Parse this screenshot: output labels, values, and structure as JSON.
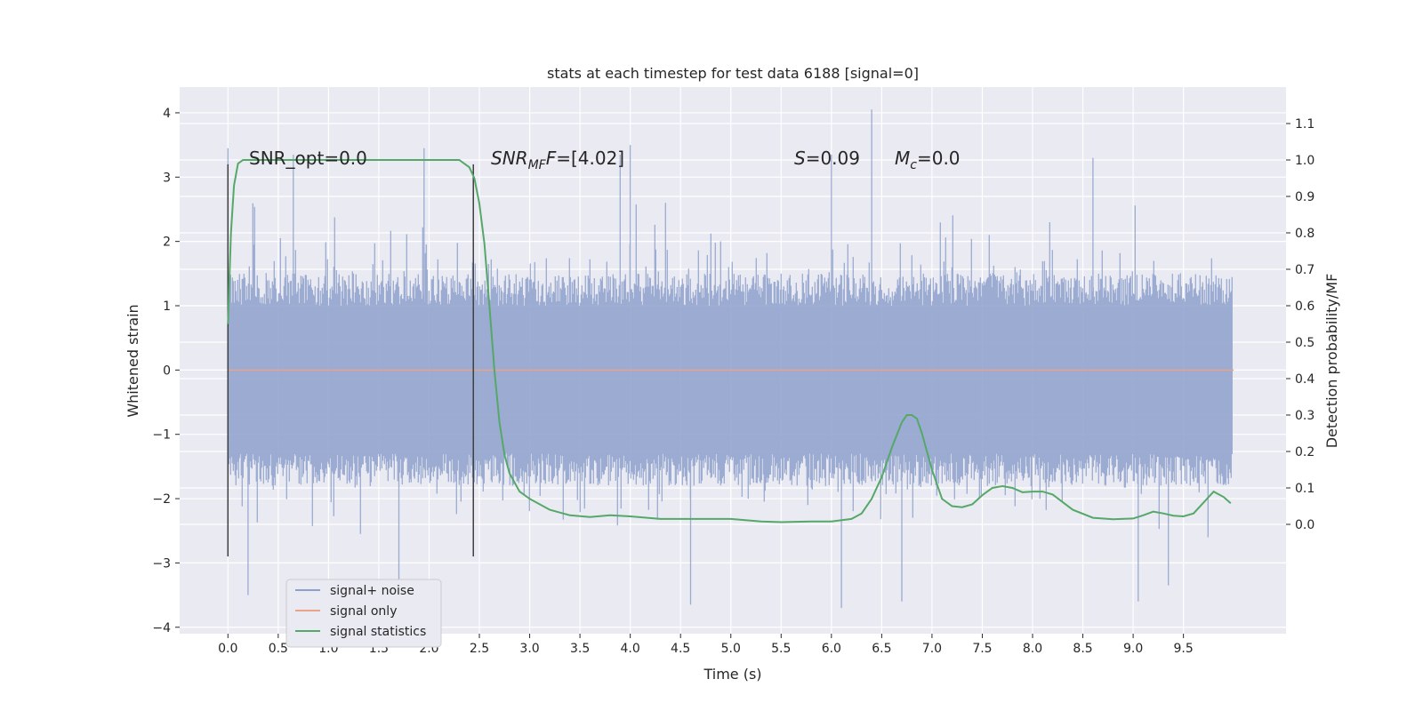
{
  "chart_data": {
    "type": "line",
    "title": "stats at each timestep for test data 6188 [signal=0]",
    "xlabel": "Time (s)",
    "ylabel": "Whitened strain",
    "y2label": "Detection probability/MF",
    "xlim": [
      -0.48,
      10.52
    ],
    "ylim": [
      -4.1,
      4.4
    ],
    "y2lim": [
      -0.3,
      1.2
    ],
    "xticks": [
      "0.0",
      "0.5",
      "1.0",
      "1.5",
      "2.0",
      "2.5",
      "3.0",
      "3.5",
      "4.0",
      "4.5",
      "5.0",
      "5.5",
      "6.0",
      "6.5",
      "7.0",
      "7.5",
      "8.0",
      "8.5",
      "9.0",
      "9.5"
    ],
    "yticks": [
      "4",
      "3",
      "2",
      "1",
      "0",
      "−1",
      "−2",
      "−3",
      "−4"
    ],
    "y2ticks": [
      "1.1",
      "1.0",
      "0.9",
      "0.8",
      "0.7",
      "0.6",
      "0.5",
      "0.4",
      "0.3",
      "0.2",
      "0.1",
      "0.0"
    ],
    "grid": true,
    "legend": {
      "placement": "lower-left",
      "entries": [
        "signal+ noise",
        "signal only",
        "signal statistics"
      ]
    },
    "colors": {
      "background": "#eaeaf2",
      "grid": "#ffffff",
      "noise": "#8da0cb",
      "signal": "#e9a389",
      "stats": "#55a868",
      "vline": "#404040"
    },
    "annotations": {
      "snr_opt": "SNR_opt=0.0",
      "snr_mf_prefix": "SNR",
      "snr_mf_sub": "MF",
      "snr_mf_suffix": "=[4.02]",
      "s_label": "S",
      "s_value": "=0.09",
      "mc_label": "M",
      "mc_sub": "c",
      "mc_value": "=0.0"
    },
    "vlines": [
      0.0,
      2.44
    ],
    "series": [
      {
        "name": "signal+ noise",
        "axis": "left",
        "x_range": [
          0.0,
          9.99
        ],
        "envelope_max": 4.05,
        "envelope_min": -3.7,
        "peaks": [
          [
            0.0,
            3.45
          ],
          [
            0.65,
            3.35
          ],
          [
            1.95,
            3.45
          ],
          [
            3.9,
            3.35
          ],
          [
            4.0,
            3.5
          ],
          [
            6.0,
            3.35
          ],
          [
            6.4,
            4.05
          ],
          [
            8.6,
            3.3
          ],
          [
            0.2,
            -3.5
          ],
          [
            1.7,
            -3.35
          ],
          [
            4.6,
            -3.65
          ],
          [
            6.1,
            -3.7
          ],
          [
            6.7,
            -3.6
          ],
          [
            9.05,
            -3.6
          ],
          [
            9.35,
            -3.35
          ]
        ]
      },
      {
        "name": "signal only",
        "axis": "left",
        "x": [
          0.0,
          10.0
        ],
        "y": [
          0.0,
          0.0
        ]
      },
      {
        "name": "signal statistics",
        "axis": "right",
        "x": [
          0.0,
          0.03,
          0.06,
          0.1,
          0.15,
          0.2,
          0.3,
          0.5,
          1.0,
          1.5,
          2.0,
          2.2,
          2.3,
          2.35,
          2.4,
          2.45,
          2.5,
          2.55,
          2.6,
          2.65,
          2.7,
          2.75,
          2.8,
          2.9,
          3.0,
          3.2,
          3.4,
          3.6,
          3.8,
          4.0,
          4.3,
          4.6,
          5.0,
          5.3,
          5.5,
          5.8,
          6.0,
          6.2,
          6.3,
          6.4,
          6.5,
          6.6,
          6.7,
          6.75,
          6.8,
          6.85,
          6.9,
          7.0,
          7.1,
          7.2,
          7.3,
          7.4,
          7.5,
          7.6,
          7.7,
          7.8,
          7.9,
          8.0,
          8.1,
          8.2,
          8.4,
          8.6,
          8.8,
          9.0,
          9.1,
          9.2,
          9.3,
          9.4,
          9.5,
          9.6,
          9.7,
          9.8,
          9.9,
          9.97
        ],
        "y": [
          0.55,
          0.8,
          0.93,
          0.99,
          1.0,
          1.0,
          1.0,
          1.0,
          1.0,
          1.0,
          1.0,
          1.0,
          1.0,
          0.99,
          0.98,
          0.95,
          0.88,
          0.77,
          0.6,
          0.42,
          0.28,
          0.19,
          0.14,
          0.09,
          0.07,
          0.04,
          0.025,
          0.02,
          0.025,
          0.022,
          0.015,
          0.015,
          0.015,
          0.008,
          0.006,
          0.008,
          0.008,
          0.015,
          0.03,
          0.07,
          0.13,
          0.21,
          0.28,
          0.3,
          0.3,
          0.29,
          0.25,
          0.15,
          0.07,
          0.05,
          0.047,
          0.055,
          0.08,
          0.1,
          0.105,
          0.1,
          0.088,
          0.09,
          0.09,
          0.082,
          0.04,
          0.018,
          0.014,
          0.016,
          0.025,
          0.035,
          0.03,
          0.024,
          0.022,
          0.03,
          0.06,
          0.09,
          0.075,
          0.058
        ]
      }
    ]
  }
}
